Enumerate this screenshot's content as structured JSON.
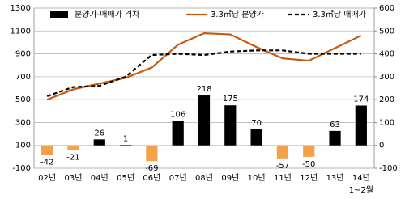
{
  "chart_data": {
    "type": "bar-line",
    "categories": [
      "02년",
      "03년",
      "04년",
      "05년",
      "06년",
      "07년",
      "08년",
      "09년",
      "10년",
      "11년",
      "12년",
      "13년",
      "14년"
    ],
    "x_note": "1~2월",
    "series": [
      {
        "name": "분양가-매매가 격차",
        "type": "bar",
        "axis": "y2",
        "color": "#000000",
        "negative_color": "#f5a04a",
        "values": [
          -42,
          -21,
          26,
          1,
          -69,
          106,
          218,
          175,
          70,
          -57,
          -50,
          63,
          174
        ]
      },
      {
        "name": "3.3㎡당 분양가",
        "type": "line",
        "color": "#c55a11",
        "style": "solid",
        "values": [
          500,
          590,
          640,
          690,
          780,
          980,
          1080,
          1070,
          960,
          860,
          840,
          950,
          1060
        ]
      },
      {
        "name": "3.3㎡당 매매가",
        "type": "line",
        "color": "#000000",
        "style": "dashed",
        "values": [
          530,
          610,
          620,
          700,
          890,
          900,
          890,
          920,
          930,
          930,
          900,
          900,
          900
        ]
      }
    ],
    "ylim": [
      -100,
      1300
    ],
    "yticks": [
      -100,
      100,
      300,
      500,
      700,
      900,
      1100,
      1300
    ],
    "y2lim": [
      -100,
      600
    ],
    "y2ticks": [
      -100,
      0,
      100,
      200,
      300,
      400,
      500,
      600
    ],
    "grid": true,
    "legend": "top"
  }
}
